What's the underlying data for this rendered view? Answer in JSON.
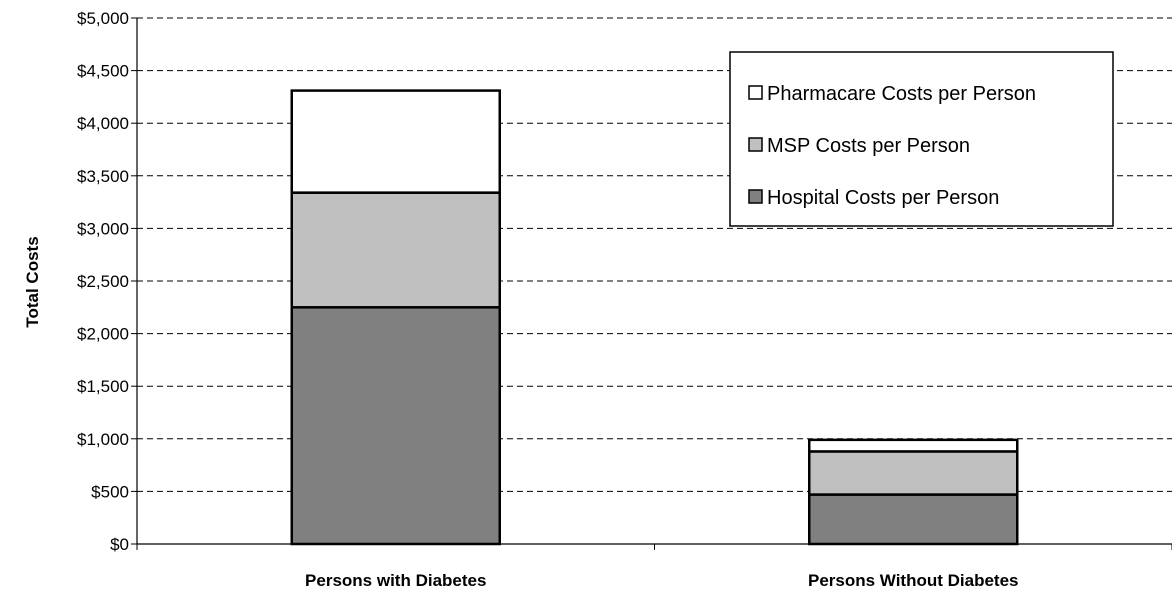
{
  "chart_data": {
    "type": "bar",
    "stacked": true,
    "categories": [
      "Persons with Diabetes",
      "Persons Without Diabetes"
    ],
    "series": [
      {
        "name": "Hospital Costs per Person",
        "values": [
          2250,
          470
        ],
        "color": "#808080"
      },
      {
        "name": "MSP Costs per Person",
        "values": [
          1090,
          410
        ],
        "color": "#c0c0c0"
      },
      {
        "name": "Pharmacare Costs per Person",
        "values": [
          970,
          110
        ],
        "color": "#ffffff"
      }
    ],
    "title": "",
    "xlabel": "",
    "ylabel": "Total Costs",
    "ylim": [
      0,
      5000
    ],
    "yticks": [
      0,
      500,
      1000,
      1500,
      2000,
      2500,
      3000,
      3500,
      4000,
      4500,
      5000
    ],
    "ytick_labels": [
      "$0",
      "$500",
      "$1,000",
      "$1,500",
      "$2,000",
      "$2,500",
      "$3,000",
      "$3,500",
      "$4,000",
      "$4,500",
      "$5,000"
    ],
    "grid": "horizontal dashed",
    "legend_position": "top-right",
    "legend_order": [
      "Pharmacare Costs per Person",
      "MSP Costs per Person",
      "Hospital Costs per Person"
    ]
  }
}
